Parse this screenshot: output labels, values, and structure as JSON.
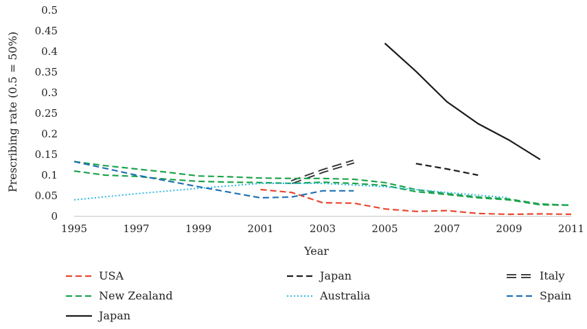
{
  "chart_data": {
    "type": "line",
    "xlabel": "Year",
    "ylabel": "Prescribing rate (0.5 = 50%)",
    "xlim": [
      1995,
      2011
    ],
    "ylim": [
      0,
      0.5
    ],
    "x_ticks": [
      "1995",
      "1997",
      "1999",
      "2001",
      "2003",
      "2005",
      "2007",
      "2009",
      "2011"
    ],
    "y_ticks": [
      "0",
      "0.05",
      "0.1",
      "0.15",
      "0.2",
      "0.25",
      "0.3",
      "0.35",
      "0.4",
      "0.45",
      "0.5"
    ],
    "grid": false,
    "legend_position": "bottom",
    "series": [
      {
        "name": "USA",
        "color": "#e8452c",
        "style": "dashed",
        "points": [
          [
            2001,
            0.065
          ],
          [
            2002,
            0.058
          ],
          [
            2003,
            0.033
          ],
          [
            2004,
            0.032
          ],
          [
            2005,
            0.018
          ],
          [
            2006,
            0.012
          ],
          [
            2007,
            0.014
          ],
          [
            2008,
            0.007
          ],
          [
            2009,
            0.005
          ],
          [
            2010,
            0.006
          ],
          [
            2011,
            0.005
          ]
        ]
      },
      {
        "name": "Japan",
        "color": "#1a1a1a",
        "style": "dashed",
        "points": [
          [
            2006,
            0.128
          ],
          [
            2007,
            0.115
          ],
          [
            2008,
            0.1
          ]
        ]
      },
      {
        "name": "Italy",
        "color": "#333333",
        "style": "double-dashed",
        "points": [
          [
            2002,
            0.083
          ],
          [
            2003,
            0.11
          ],
          [
            2004,
            0.133
          ]
        ]
      },
      {
        "name": "New Zealand",
        "color": "#1aa34a",
        "style": "dashed",
        "points": [
          [
            1995,
            0.11
          ],
          [
            1996,
            0.1
          ],
          [
            1997,
            0.097
          ],
          [
            1998,
            0.09
          ],
          [
            1999,
            0.085
          ],
          [
            2000,
            0.083
          ],
          [
            2001,
            0.082
          ],
          [
            2002,
            0.08
          ],
          [
            2003,
            0.083
          ],
          [
            2004,
            0.08
          ],
          [
            2005,
            0.075
          ],
          [
            2006,
            0.06
          ],
          [
            2007,
            0.053
          ],
          [
            2008,
            0.045
          ],
          [
            2009,
            0.04
          ],
          [
            2010,
            0.028
          ],
          [
            2011,
            0.027
          ]
        ]
      },
      {
        "name": "New Zealand",
        "color": "#1aa34a",
        "style": "dashed",
        "points": [
          [
            1995,
            0.133
          ],
          [
            1996,
            0.123
          ],
          [
            1997,
            0.115
          ],
          [
            1998,
            0.107
          ],
          [
            1999,
            0.098
          ],
          [
            2000,
            0.096
          ],
          [
            2001,
            0.093
          ],
          [
            2002,
            0.092
          ],
          [
            2003,
            0.092
          ],
          [
            2004,
            0.09
          ],
          [
            2005,
            0.082
          ],
          [
            2006,
            0.065
          ],
          [
            2007,
            0.055
          ],
          [
            2008,
            0.047
          ],
          [
            2009,
            0.042
          ],
          [
            2010,
            0.03
          ],
          [
            2011,
            0.027
          ]
        ]
      },
      {
        "name": "Australia",
        "color": "#29b8e0",
        "style": "dotted",
        "points": [
          [
            1995,
            0.04
          ],
          [
            1997,
            0.055
          ],
          [
            1999,
            0.068
          ],
          [
            2001,
            0.08
          ],
          [
            2003,
            0.08
          ],
          [
            2005,
            0.072
          ],
          [
            2007,
            0.058
          ],
          [
            2009,
            0.045
          ]
        ]
      },
      {
        "name": "Spain",
        "color": "#1f6fb5",
        "style": "dashed",
        "points": [
          [
            1995,
            0.133
          ],
          [
            1997,
            0.1
          ],
          [
            1999,
            0.072
          ],
          [
            2001,
            0.045
          ],
          [
            2002,
            0.047
          ],
          [
            2003,
            0.062
          ],
          [
            2004,
            0.062
          ]
        ]
      },
      {
        "name": "Japan",
        "color": "#1a1a1a",
        "style": "solid",
        "points": [
          [
            2005,
            0.42
          ],
          [
            2006,
            0.352
          ],
          [
            2007,
            0.278
          ],
          [
            2008,
            0.225
          ],
          [
            2009,
            0.185
          ],
          [
            2010,
            0.138
          ]
        ]
      }
    ],
    "legend": [
      {
        "label": "USA",
        "color": "#e8452c",
        "style": "dashed"
      },
      {
        "label": "Japan",
        "color": "#1a1a1a",
        "style": "dashed"
      },
      {
        "label": "Italy",
        "color": "#333333",
        "style": "double-dashed"
      },
      {
        "label": "New Zealand",
        "color": "#1aa34a",
        "style": "dashed"
      },
      {
        "label": "Australia",
        "color": "#29b8e0",
        "style": "dotted"
      },
      {
        "label": "Spain",
        "color": "#1f6fb5",
        "style": "dashed"
      },
      {
        "label": "Japan",
        "color": "#1a1a1a",
        "style": "solid"
      }
    ]
  }
}
